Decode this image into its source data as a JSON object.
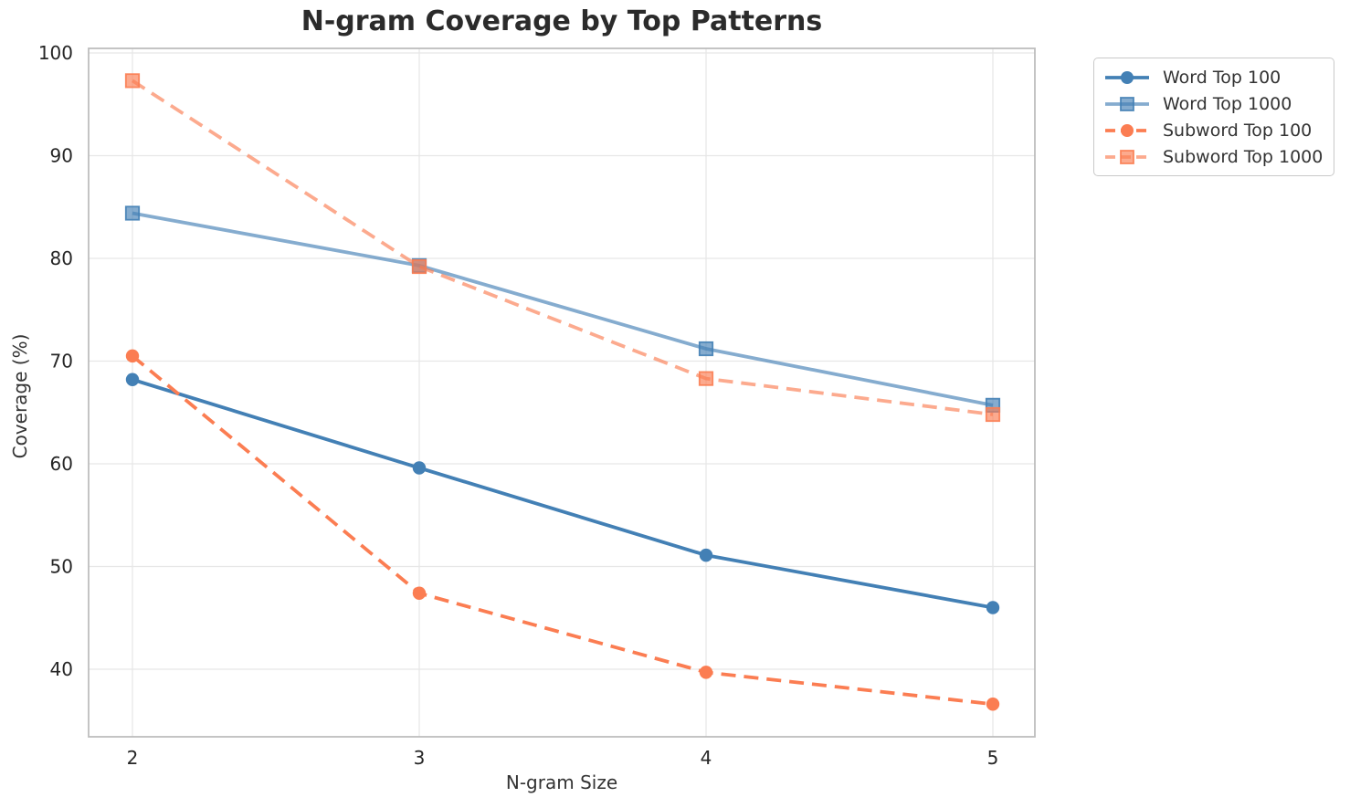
{
  "title": "N-gram Coverage by Top Patterns",
  "chart_data": {
    "type": "line",
    "x": [
      2,
      3,
      4,
      5
    ],
    "xlabel": "N-gram Size",
    "ylabel": "Coverage (%)",
    "xticks": [
      "2",
      "3",
      "4",
      "5"
    ],
    "yticks": [
      "40",
      "50",
      "60",
      "70",
      "80",
      "90",
      "100"
    ],
    "xlim": [
      1.85,
      5.15
    ],
    "ylim": [
      33.4,
      100.4
    ],
    "grid": true,
    "legend_position": "upper-right-outside",
    "series": [
      {
        "name": "Word Top 100",
        "values": [
          68.2,
          59.6,
          51.1,
          46.0
        ],
        "color": "#4380B5",
        "opacity": 1,
        "line_style": "solid",
        "marker": "circle"
      },
      {
        "name": "Word Top 1000",
        "values": [
          84.4,
          79.3,
          71.2,
          65.7
        ],
        "color": "#4380B5",
        "opacity": 0.65,
        "line_style": "solid",
        "marker": "square"
      },
      {
        "name": "Subword Top 100",
        "values": [
          70.5,
          47.4,
          39.7,
          36.6
        ],
        "color": "#FB7D52",
        "opacity": 1,
        "line_style": "dashed",
        "marker": "circle"
      },
      {
        "name": "Subword Top 1000",
        "values": [
          97.3,
          79.2,
          68.3,
          64.8
        ],
        "color": "#FB7D52",
        "opacity": 0.65,
        "line_style": "dashed",
        "marker": "square"
      }
    ],
    "style": {
      "grid_color": "#e7e7e7",
      "spine_color": "#bdbdbd",
      "tick_label_color": "#262626",
      "title_color": "#2b2b2b"
    }
  }
}
